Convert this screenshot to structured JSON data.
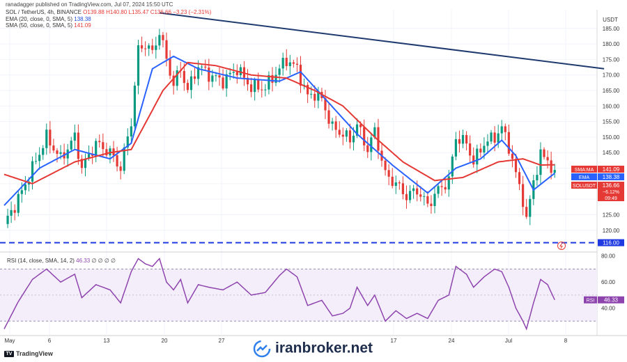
{
  "header": {
    "published": "ranadagger published on TradingView.com, Jul 07, 2024 15:50 UTC"
  },
  "legend": {
    "symbol": "SOL / TetherUS, 4h, BINANCE",
    "ohlc": "O139.88 H140.80 L135.47 C136.66 −3.23 (−2.31%)",
    "ema_label": "EMA (20, close, 0, SMA, 5)",
    "ema_value": "138.38",
    "sma_label": "SMA (50, close, 0, SMA, 5)",
    "sma_value": "141.09"
  },
  "rsi_legend": {
    "label": "RSI (14, close, SMA, 14, 2)",
    "value": "46.33",
    "extras": "∅ ∅ ∅ ∅"
  },
  "currency": "USDT",
  "price_badges": {
    "sma": {
      "name": "SMA:MA",
      "value": "141.09"
    },
    "ema": {
      "name": "EMA",
      "value": "138.38"
    },
    "sol": {
      "name": "SOLUSDT",
      "value": "136.66",
      "change": "−6.12%",
      "timer": "09:49"
    },
    "support": "116.00",
    "rsi": {
      "name": "RSI",
      "value": "46.33"
    }
  },
  "watermark": "iranbroker.net",
  "tv_logo": "TradingView",
  "colors": {
    "up": "#089981",
    "down": "#e53935",
    "ema": "#2962ff",
    "sma": "#e53935",
    "trend": "#1f3a6e",
    "rsi": "#8e44ad",
    "support": "#1e3ae0"
  },
  "chart_data": [
    {
      "type": "candlestick",
      "title": "",
      "x_ticks": [
        "May",
        "6",
        "13",
        "20",
        "27",
        "17",
        "24",
        "Jul",
        "8"
      ],
      "y_ticks": [
        120,
        125,
        130,
        135,
        140,
        145,
        150,
        155,
        160,
        165,
        170,
        175,
        180,
        185
      ],
      "ylim": [
        113,
        191
      ],
      "grid": true,
      "close_approx": [
        [
          0,
          122
        ],
        [
          4,
          130
        ],
        [
          8,
          140
        ],
        [
          12,
          150
        ],
        [
          16,
          143
        ],
        [
          20,
          150
        ],
        [
          22,
          140
        ],
        [
          26,
          148
        ],
        [
          30,
          145
        ],
        [
          33,
          140
        ],
        [
          36,
          155
        ],
        [
          38,
          178
        ],
        [
          40,
          180
        ],
        [
          42,
          177
        ],
        [
          44,
          184
        ],
        [
          46,
          175
        ],
        [
          48,
          167
        ],
        [
          50,
          172
        ],
        [
          52,
          165
        ],
        [
          55,
          173
        ],
        [
          58,
          170
        ],
        [
          62,
          168
        ],
        [
          66,
          172
        ],
        [
          70,
          166
        ],
        [
          74,
          166
        ],
        [
          78,
          172
        ],
        [
          80,
          175
        ],
        [
          83,
          172
        ],
        [
          86,
          163
        ],
        [
          88,
          164
        ],
        [
          90,
          162
        ],
        [
          93,
          153
        ],
        [
          96,
          151
        ],
        [
          98,
          149
        ],
        [
          100,
          154
        ],
        [
          103,
          146
        ],
        [
          105,
          152
        ],
        [
          108,
          138
        ],
        [
          111,
          135
        ],
        [
          114,
          131
        ],
        [
          117,
          133
        ],
        [
          120,
          128
        ],
        [
          123,
          133
        ],
        [
          126,
          136
        ],
        [
          128,
          150
        ],
        [
          131,
          148
        ],
        [
          133,
          142
        ],
        [
          136,
          148
        ],
        [
          139,
          150
        ],
        [
          141,
          153
        ],
        [
          143,
          147
        ],
        [
          145,
          138
        ],
        [
          147,
          130
        ],
        [
          148,
          123
        ],
        [
          150,
          136
        ],
        [
          152,
          144
        ],
        [
          154,
          143
        ],
        [
          156,
          137
        ]
      ],
      "ema20_approx": [
        [
          0,
          128
        ],
        [
          10,
          140
        ],
        [
          20,
          146
        ],
        [
          30,
          143
        ],
        [
          36,
          148
        ],
        [
          42,
          172
        ],
        [
          48,
          176
        ],
        [
          55,
          172
        ],
        [
          66,
          169
        ],
        [
          78,
          168
        ],
        [
          84,
          171
        ],
        [
          92,
          161
        ],
        [
          100,
          151
        ],
        [
          110,
          141
        ],
        [
          120,
          132
        ],
        [
          128,
          140
        ],
        [
          135,
          143
        ],
        [
          141,
          149
        ],
        [
          145,
          144
        ],
        [
          150,
          133
        ],
        [
          156,
          138.38
        ]
      ],
      "sma50_approx": [
        [
          0,
          138
        ],
        [
          8,
          135
        ],
        [
          20,
          142
        ],
        [
          30,
          145
        ],
        [
          36,
          146
        ],
        [
          45,
          165
        ],
        [
          52,
          174
        ],
        [
          60,
          173
        ],
        [
          70,
          170
        ],
        [
          80,
          169
        ],
        [
          88,
          165
        ],
        [
          96,
          160
        ],
        [
          105,
          150
        ],
        [
          113,
          142
        ],
        [
          122,
          136
        ],
        [
          130,
          137
        ],
        [
          140,
          142
        ],
        [
          147,
          143
        ],
        [
          152,
          141
        ],
        [
          156,
          141.09
        ]
      ],
      "trendline": [
        [
          44,
          190
        ],
        [
          170,
          172
        ]
      ],
      "support": 116,
      "last": {
        "close": 136.66,
        "ema": 138.38,
        "sma": 141.09
      }
    },
    {
      "type": "line",
      "title": "",
      "y_ticks": [
        40,
        60,
        80
      ],
      "ylim": [
        20,
        82
      ],
      "band": [
        30,
        70
      ],
      "rsi_approx": [
        [
          0,
          24
        ],
        [
          4,
          45
        ],
        [
          8,
          62
        ],
        [
          12,
          70
        ],
        [
          16,
          60
        ],
        [
          20,
          66
        ],
        [
          22,
          48
        ],
        [
          26,
          58
        ],
        [
          30,
          54
        ],
        [
          33,
          44
        ],
        [
          36,
          68
        ],
        [
          38,
          78
        ],
        [
          40,
          74
        ],
        [
          42,
          72
        ],
        [
          44,
          78
        ],
        [
          46,
          60
        ],
        [
          48,
          54
        ],
        [
          50,
          62
        ],
        [
          52,
          44
        ],
        [
          55,
          58
        ],
        [
          58,
          56
        ],
        [
          62,
          54
        ],
        [
          66,
          60
        ],
        [
          70,
          50
        ],
        [
          74,
          52
        ],
        [
          78,
          65
        ],
        [
          80,
          70
        ],
        [
          83,
          64
        ],
        [
          86,
          42
        ],
        [
          88,
          44
        ],
        [
          90,
          46
        ],
        [
          93,
          34
        ],
        [
          96,
          36
        ],
        [
          98,
          40
        ],
        [
          100,
          56
        ],
        [
          103,
          42
        ],
        [
          105,
          50
        ],
        [
          108,
          30
        ],
        [
          111,
          38
        ],
        [
          114,
          32
        ],
        [
          117,
          36
        ],
        [
          120,
          32
        ],
        [
          123,
          46
        ],
        [
          126,
          50
        ],
        [
          128,
          72
        ],
        [
          131,
          66
        ],
        [
          133,
          56
        ],
        [
          136,
          64
        ],
        [
          139,
          70
        ],
        [
          141,
          68
        ],
        [
          143,
          56
        ],
        [
          145,
          40
        ],
        [
          147,
          30
        ],
        [
          148,
          24
        ],
        [
          150,
          44
        ],
        [
          152,
          62
        ],
        [
          154,
          58
        ],
        [
          156,
          46.33
        ]
      ],
      "last": 46.33
    }
  ]
}
